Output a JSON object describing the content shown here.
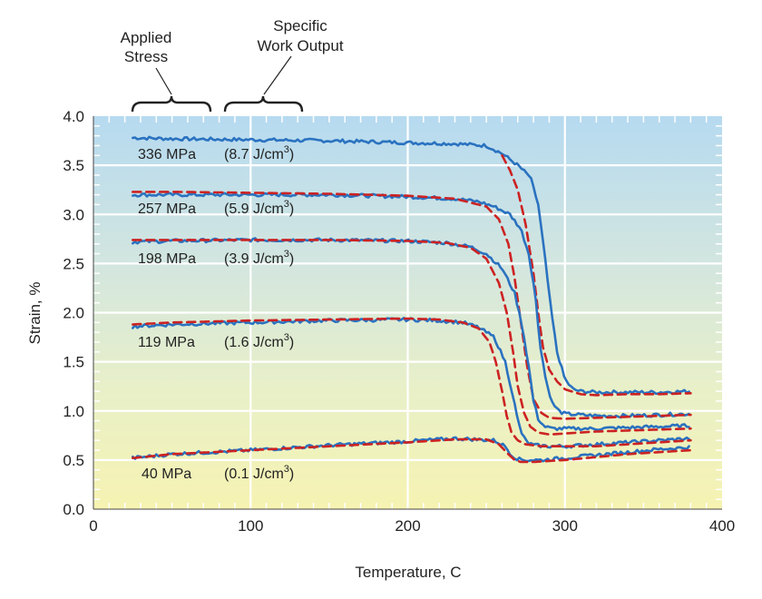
{
  "chart_data": {
    "type": "line",
    "xlabel": "Temperature, C",
    "ylabel": "Strain, %",
    "xlim": [
      0,
      400
    ],
    "ylim": [
      0.0,
      4.0
    ],
    "xticks": [
      "0",
      "100",
      "200",
      "300",
      "400"
    ],
    "yticks": [
      "0.0",
      "0.5",
      "1.0",
      "1.5",
      "2.0",
      "2.5",
      "3.0",
      "3.5",
      "4.0"
    ],
    "grid": true,
    "header_labels": {
      "applied_stress_line1": "Applied",
      "applied_stress_line2": "Stress",
      "work_output_line1": "Specific",
      "work_output_line2": "Work Output"
    },
    "series_labels": [
      {
        "stress": "336 MPa",
        "work": "(8.7 J/cm",
        "work_sup": "3",
        "work_end": ")"
      },
      {
        "stress": "257 MPa",
        "work": "(5.9 J/cm",
        "work_sup": "3",
        "work_end": ")"
      },
      {
        "stress": "198 MPa",
        "work": "(3.9 J/cm",
        "work_sup": "3",
        "work_end": ")"
      },
      {
        "stress": "119 MPa",
        "work": "(1.6 J/cm",
        "work_sup": "3",
        "work_end": ")"
      },
      {
        "stress": "40 MPa",
        "work": "(0.1 J/cm",
        "work_sup": "3",
        "work_end": ")"
      }
    ],
    "series": [
      {
        "kind": "measured",
        "color": "#2a72c0",
        "x": [
          25,
          50,
          100,
          150,
          200,
          230,
          250,
          260,
          270,
          278,
          283,
          287,
          291,
          295,
          300,
          305,
          310,
          320,
          340,
          360,
          380
        ],
        "y": [
          3.78,
          3.77,
          3.76,
          3.75,
          3.73,
          3.72,
          3.7,
          3.62,
          3.5,
          3.38,
          3.1,
          2.6,
          2.05,
          1.6,
          1.32,
          1.22,
          1.2,
          1.19,
          1.19,
          1.19,
          1.2
        ]
      },
      {
        "kind": "model",
        "color": "#cc2222",
        "x": [
          260,
          265,
          270,
          275,
          280,
          283,
          286,
          290,
          295,
          300,
          310,
          320,
          340,
          360,
          380
        ],
        "y": [
          3.6,
          3.45,
          3.25,
          2.9,
          2.4,
          2.0,
          1.65,
          1.42,
          1.3,
          1.22,
          1.17,
          1.16,
          1.17,
          1.17,
          1.18
        ]
      },
      {
        "kind": "measured",
        "color": "#2a72c0",
        "x": [
          25,
          50,
          100,
          150,
          200,
          230,
          245,
          255,
          265,
          272,
          277,
          281,
          284,
          288,
          292,
          296,
          300,
          320,
          340,
          360,
          380
        ],
        "y": [
          3.2,
          3.2,
          3.2,
          3.2,
          3.18,
          3.16,
          3.13,
          3.08,
          3.0,
          2.85,
          2.6,
          2.2,
          1.7,
          1.3,
          1.08,
          1.0,
          0.97,
          0.95,
          0.95,
          0.96,
          0.97
        ]
      },
      {
        "kind": "model",
        "color": "#cc2222",
        "x": [
          25,
          50,
          100,
          150,
          200,
          230,
          250,
          258,
          264,
          268,
          272,
          276,
          280,
          285,
          290,
          300,
          320,
          340,
          360,
          380
        ],
        "y": [
          3.23,
          3.23,
          3.22,
          3.21,
          3.19,
          3.16,
          3.08,
          2.95,
          2.7,
          2.35,
          1.9,
          1.45,
          1.12,
          0.98,
          0.93,
          0.92,
          0.93,
          0.94,
          0.95,
          0.96
        ]
      },
      {
        "kind": "measured",
        "color": "#2a72c0",
        "x": [
          25,
          50,
          100,
          150,
          200,
          225,
          240,
          250,
          260,
          268,
          273,
          277,
          280,
          283,
          287,
          292,
          300,
          320,
          340,
          360,
          380
        ],
        "y": [
          2.72,
          2.73,
          2.74,
          2.74,
          2.73,
          2.71,
          2.67,
          2.6,
          2.45,
          2.2,
          1.85,
          1.45,
          1.1,
          0.92,
          0.84,
          0.82,
          0.82,
          0.82,
          0.83,
          0.84,
          0.85
        ]
      },
      {
        "kind": "model",
        "color": "#cc2222",
        "x": [
          25,
          50,
          100,
          150,
          200,
          225,
          240,
          250,
          258,
          263,
          267,
          270,
          274,
          278,
          283,
          290,
          300,
          320,
          340,
          360,
          380
        ],
        "y": [
          2.74,
          2.74,
          2.74,
          2.74,
          2.73,
          2.71,
          2.66,
          2.55,
          2.3,
          2.0,
          1.6,
          1.25,
          0.98,
          0.84,
          0.78,
          0.76,
          0.77,
          0.79,
          0.8,
          0.81,
          0.82
        ]
      },
      {
        "kind": "measured",
        "color": "#2a72c0",
        "x": [
          25,
          50,
          100,
          150,
          200,
          220,
          235,
          245,
          255,
          262,
          267,
          270,
          273,
          276,
          280,
          290,
          300,
          320,
          340,
          360,
          380
        ],
        "y": [
          1.86,
          1.88,
          1.9,
          1.92,
          1.93,
          1.92,
          1.9,
          1.85,
          1.75,
          1.5,
          1.15,
          0.9,
          0.75,
          0.68,
          0.65,
          0.64,
          0.64,
          0.66,
          0.68,
          0.7,
          0.72
        ]
      },
      {
        "kind": "model",
        "color": "#cc2222",
        "x": [
          25,
          50,
          100,
          150,
          200,
          220,
          235,
          245,
          252,
          256,
          260,
          263,
          266,
          270,
          275,
          285,
          300,
          320,
          340,
          360,
          380
        ],
        "y": [
          1.88,
          1.9,
          1.92,
          1.93,
          1.94,
          1.93,
          1.9,
          1.84,
          1.7,
          1.5,
          1.2,
          0.95,
          0.78,
          0.7,
          0.66,
          0.64,
          0.64,
          0.64,
          0.66,
          0.68,
          0.7
        ]
      },
      {
        "kind": "measured",
        "color": "#2a72c0",
        "x": [
          25,
          50,
          100,
          150,
          200,
          230,
          255,
          262,
          266,
          270,
          275,
          285,
          300,
          320,
          340,
          360,
          380
        ],
        "y": [
          0.52,
          0.56,
          0.6,
          0.65,
          0.69,
          0.72,
          0.7,
          0.64,
          0.55,
          0.51,
          0.5,
          0.5,
          0.52,
          0.55,
          0.58,
          0.61,
          0.63
        ]
      },
      {
        "kind": "model",
        "color": "#cc2222",
        "x": [
          25,
          50,
          100,
          150,
          200,
          230,
          250,
          258,
          264,
          268,
          272,
          280,
          290,
          300,
          320,
          340,
          360,
          380
        ],
        "y": [
          0.52,
          0.56,
          0.6,
          0.64,
          0.68,
          0.71,
          0.71,
          0.66,
          0.56,
          0.5,
          0.48,
          0.48,
          0.49,
          0.5,
          0.53,
          0.56,
          0.58,
          0.6
        ]
      }
    ]
  }
}
